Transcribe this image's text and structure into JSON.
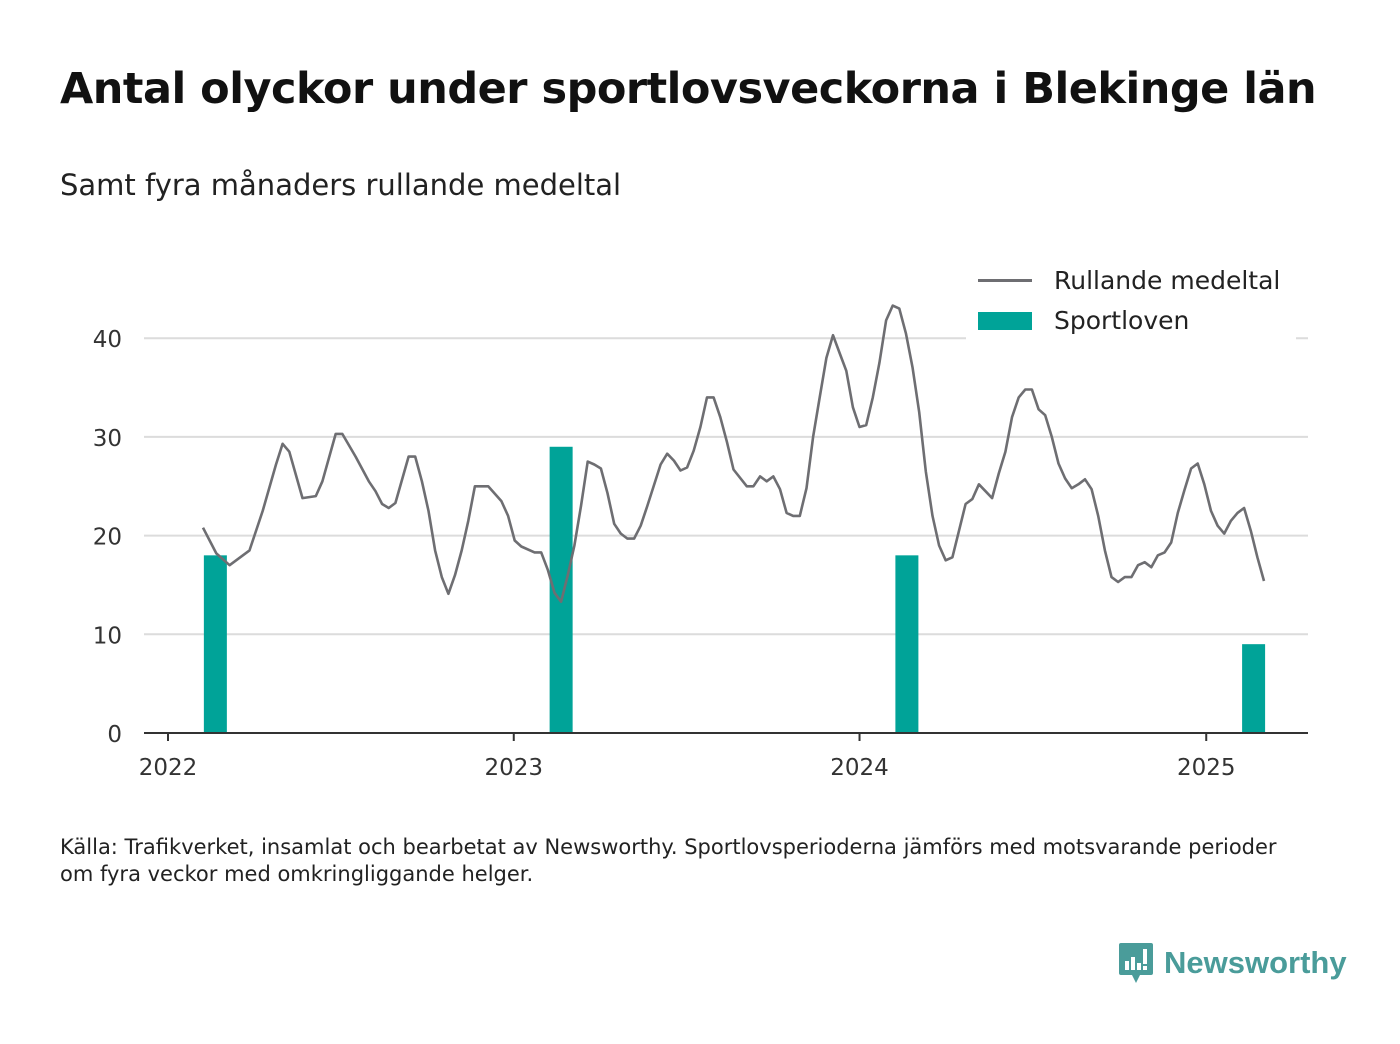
{
  "title": "Antal olyckor under sportlovsveckorna i Blekinge län",
  "subtitle": "Samt fyra månaders rullande medeltal",
  "source": "Källa: Trafikverket, insamlat och bearbetat av Newsworthy. Sportlovsperioderna jämförs med motsvarande perioder om fyra veckor med omkringliggande helger.",
  "brand": "Newsworthy",
  "colors": {
    "bar": "#00a398",
    "line": "#6e6e72",
    "grid": "#dcdcdc",
    "axis": "#333333",
    "brand": "#4a9c9a"
  },
  "chart_data": {
    "type": "bar+line",
    "grid": true,
    "legend_position": "top-right",
    "ylim": [
      0,
      45
    ],
    "y_ticks": [
      0,
      10,
      20,
      30,
      40
    ],
    "x_ticks": [
      "2022",
      "2023",
      "2024",
      "2025"
    ],
    "series": [
      {
        "name": "Rullande medeltal",
        "type": "line",
        "points": [
          [
            "2022-02-07",
            20.8
          ],
          [
            "2022-02-21",
            18.2
          ],
          [
            "2022-03-07",
            17.0
          ],
          [
            "2022-03-28",
            18.5
          ],
          [
            "2022-04-11",
            22.5
          ],
          [
            "2022-04-25",
            27.2
          ],
          [
            "2022-05-02",
            29.3
          ],
          [
            "2022-05-09",
            28.5
          ],
          [
            "2022-05-23",
            23.8
          ],
          [
            "2022-06-06",
            24.0
          ],
          [
            "2022-06-13",
            25.5
          ],
          [
            "2022-06-27",
            30.3
          ],
          [
            "2022-07-04",
            30.3
          ],
          [
            "2022-07-18",
            28.0
          ],
          [
            "2022-08-01",
            25.5
          ],
          [
            "2022-08-08",
            24.5
          ],
          [
            "2022-08-15",
            23.2
          ],
          [
            "2022-08-22",
            22.8
          ],
          [
            "2022-08-29",
            23.3
          ],
          [
            "2022-09-12",
            28.0
          ],
          [
            "2022-09-19",
            28.0
          ],
          [
            "2022-09-26",
            25.5
          ],
          [
            "2022-10-03",
            22.5
          ],
          [
            "2022-10-10",
            18.5
          ],
          [
            "2022-10-17",
            15.8
          ],
          [
            "2022-10-24",
            14.1
          ],
          [
            "2022-10-31",
            16.0
          ],
          [
            "2022-11-07",
            18.5
          ],
          [
            "2022-11-14",
            21.5
          ],
          [
            "2022-11-21",
            25.0
          ],
          [
            "2022-12-05",
            25.0
          ],
          [
            "2022-12-19",
            23.5
          ],
          [
            "2022-12-26",
            22.0
          ],
          [
            "2023-01-02",
            19.5
          ],
          [
            "2023-01-09",
            18.9
          ],
          [
            "2023-01-23",
            18.3
          ],
          [
            "2023-01-30",
            18.3
          ],
          [
            "2023-02-06",
            16.5
          ],
          [
            "2023-02-13",
            14.2
          ],
          [
            "2023-02-20",
            13.3
          ],
          [
            "2023-02-27",
            16.0
          ],
          [
            "2023-03-06",
            19.0
          ],
          [
            "2023-03-13",
            23.0
          ],
          [
            "2023-03-20",
            27.5
          ],
          [
            "2023-03-27",
            27.2
          ],
          [
            "2023-04-03",
            26.8
          ],
          [
            "2023-04-10",
            24.3
          ],
          [
            "2023-04-17",
            21.2
          ],
          [
            "2023-04-24",
            20.2
          ],
          [
            "2023-05-01",
            19.7
          ],
          [
            "2023-05-08",
            19.7
          ],
          [
            "2023-05-15",
            21.0
          ],
          [
            "2023-05-22",
            23.0
          ],
          [
            "2023-06-05",
            27.2
          ],
          [
            "2023-06-12",
            28.3
          ],
          [
            "2023-06-19",
            27.6
          ],
          [
            "2023-06-26",
            26.6
          ],
          [
            "2023-07-03",
            26.9
          ],
          [
            "2023-07-10",
            28.6
          ],
          [
            "2023-07-17",
            31.0
          ],
          [
            "2023-07-24",
            34.0
          ],
          [
            "2023-07-31",
            34.0
          ],
          [
            "2023-08-07",
            32.0
          ],
          [
            "2023-08-14",
            29.5
          ],
          [
            "2023-08-21",
            26.7
          ],
          [
            "2023-09-04",
            25.0
          ],
          [
            "2023-09-11",
            25.0
          ],
          [
            "2023-09-18",
            26.0
          ],
          [
            "2023-09-25",
            25.5
          ],
          [
            "2023-10-02",
            26.0
          ],
          [
            "2023-10-09",
            24.7
          ],
          [
            "2023-10-16",
            22.3
          ],
          [
            "2023-10-23",
            22.0
          ],
          [
            "2023-10-30",
            22.0
          ],
          [
            "2023-11-06",
            24.8
          ],
          [
            "2023-11-13",
            30.0
          ],
          [
            "2023-11-20",
            34.0
          ],
          [
            "2023-11-27",
            38.0
          ],
          [
            "2023-12-04",
            40.3
          ],
          [
            "2023-12-11",
            38.5
          ],
          [
            "2023-12-18",
            36.7
          ],
          [
            "2023-12-25",
            33.0
          ],
          [
            "2024-01-01",
            31.0
          ],
          [
            "2024-01-08",
            31.2
          ],
          [
            "2024-01-15",
            34.0
          ],
          [
            "2024-01-22",
            37.5
          ],
          [
            "2024-01-29",
            41.8
          ],
          [
            "2024-02-05",
            43.3
          ],
          [
            "2024-02-12",
            43.0
          ],
          [
            "2024-02-19",
            40.5
          ],
          [
            "2024-02-26",
            37.0
          ],
          [
            "2024-03-04",
            32.5
          ],
          [
            "2024-03-11",
            26.5
          ],
          [
            "2024-03-18",
            22.0
          ],
          [
            "2024-03-25",
            19.0
          ],
          [
            "2024-04-01",
            17.5
          ],
          [
            "2024-04-08",
            17.8
          ],
          [
            "2024-04-15",
            20.5
          ],
          [
            "2024-04-22",
            23.2
          ],
          [
            "2024-04-29",
            23.7
          ],
          [
            "2024-05-06",
            25.2
          ],
          [
            "2024-05-13",
            24.5
          ],
          [
            "2024-05-20",
            23.8
          ],
          [
            "2024-05-27",
            26.3
          ],
          [
            "2024-06-03",
            28.5
          ],
          [
            "2024-06-10",
            32.0
          ],
          [
            "2024-06-17",
            34.0
          ],
          [
            "2024-06-24",
            34.8
          ],
          [
            "2024-07-01",
            34.8
          ],
          [
            "2024-07-08",
            32.8
          ],
          [
            "2024-07-15",
            32.2
          ],
          [
            "2024-07-22",
            30.0
          ],
          [
            "2024-07-29",
            27.3
          ],
          [
            "2024-08-05",
            25.8
          ],
          [
            "2024-08-12",
            24.8
          ],
          [
            "2024-08-19",
            25.2
          ],
          [
            "2024-08-26",
            25.7
          ],
          [
            "2024-09-02",
            24.7
          ],
          [
            "2024-09-09",
            22.0
          ],
          [
            "2024-09-16",
            18.5
          ],
          [
            "2024-09-23",
            15.8
          ],
          [
            "2024-09-30",
            15.3
          ],
          [
            "2024-10-07",
            15.8
          ],
          [
            "2024-10-14",
            15.8
          ],
          [
            "2024-10-21",
            17.0
          ],
          [
            "2024-10-28",
            17.3
          ],
          [
            "2024-11-04",
            16.8
          ],
          [
            "2024-11-11",
            18.0
          ],
          [
            "2024-11-18",
            18.3
          ],
          [
            "2024-11-25",
            19.3
          ],
          [
            "2024-12-02",
            22.3
          ],
          [
            "2024-12-09",
            24.6
          ],
          [
            "2024-12-16",
            26.8
          ],
          [
            "2024-12-23",
            27.3
          ],
          [
            "2024-12-30",
            25.2
          ],
          [
            "2025-01-06",
            22.5
          ],
          [
            "2025-01-13",
            21.0
          ],
          [
            "2025-01-20",
            20.2
          ],
          [
            "2025-01-27",
            21.5
          ],
          [
            "2025-02-03",
            22.3
          ],
          [
            "2025-02-10",
            22.8
          ],
          [
            "2025-02-17",
            20.5
          ],
          [
            "2025-02-24",
            17.8
          ],
          [
            "2025-03-03",
            15.4
          ]
        ]
      },
      {
        "name": "Sportloven",
        "type": "bar",
        "points": [
          [
            "2022-02-20",
            18
          ],
          [
            "2023-02-20",
            29
          ],
          [
            "2024-02-20",
            18
          ],
          [
            "2025-02-20",
            9
          ]
        ]
      }
    ]
  }
}
